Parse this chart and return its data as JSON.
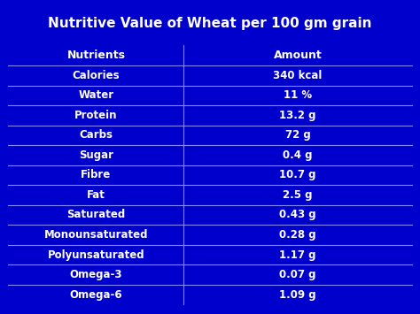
{
  "title": "Nutritive Value of Wheat per 100 gm grain",
  "title_bg": "#0000cc",
  "title_color": "#ffffff",
  "header": [
    "Nutrients",
    "Amount"
  ],
  "rows": [
    [
      "Calories",
      "340 kcal"
    ],
    [
      "Water",
      "11 %"
    ],
    [
      "Protein",
      "13.2 g"
    ],
    [
      "Carbs",
      "72 g"
    ],
    [
      "Sugar",
      "0.4 g"
    ],
    [
      "Fibre",
      "10.7 g"
    ],
    [
      "Fat",
      "2.5 g"
    ],
    [
      "Saturated",
      "0.43 g"
    ],
    [
      "Monounsaturated",
      "0.28 g"
    ],
    [
      "Polyunsaturated",
      "1.17 g"
    ],
    [
      "Omega-3",
      "0.07 g"
    ],
    [
      "Omega-6",
      "1.09 g"
    ]
  ],
  "cell_bg": "#0000dd",
  "cell_color": "#ffffff",
  "border_color": "#8888ff",
  "outer_border_color": "#ffffff",
  "fig_bg": "#0000cc",
  "title_fontsize": 11.0,
  "header_fontsize": 9.0,
  "cell_fontsize": 8.5
}
